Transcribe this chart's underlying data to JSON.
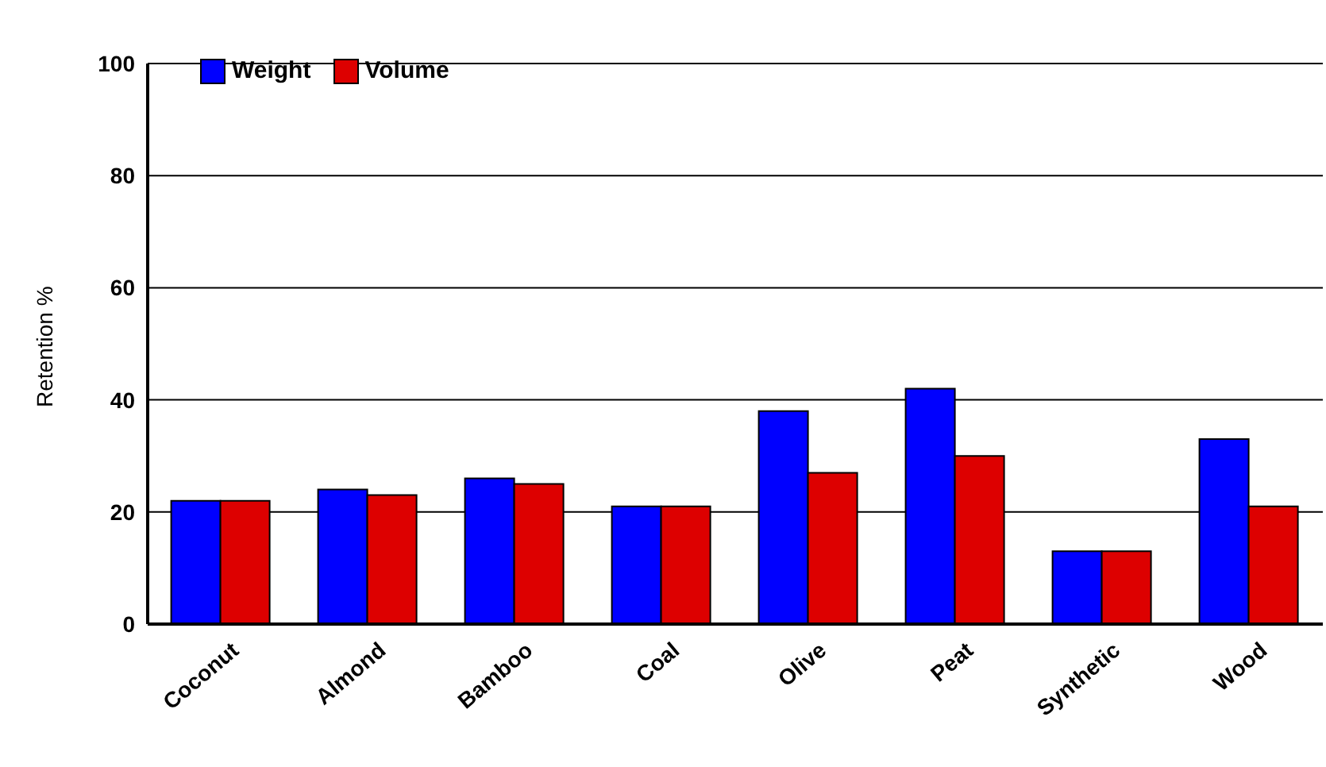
{
  "chart_data": {
    "type": "bar",
    "ylabel": "Retention %",
    "categories": [
      "Coconut",
      "Almond",
      "Bamboo",
      "Coal",
      "Olive",
      "Peat",
      "Synthetic",
      "Wood"
    ],
    "series": [
      {
        "name": "Weight",
        "color": "#0000ff",
        "values": [
          22,
          24,
          26,
          21,
          38,
          42,
          13,
          33
        ]
      },
      {
        "name": "Volume",
        "color": "#dd0000",
        "values": [
          22,
          23,
          25,
          21,
          27,
          30,
          13,
          21
        ]
      }
    ],
    "ylim": [
      0,
      100
    ],
    "yticks": [
      0,
      20,
      40,
      60,
      80,
      100
    ],
    "grid": "y",
    "legend": "top left"
  }
}
